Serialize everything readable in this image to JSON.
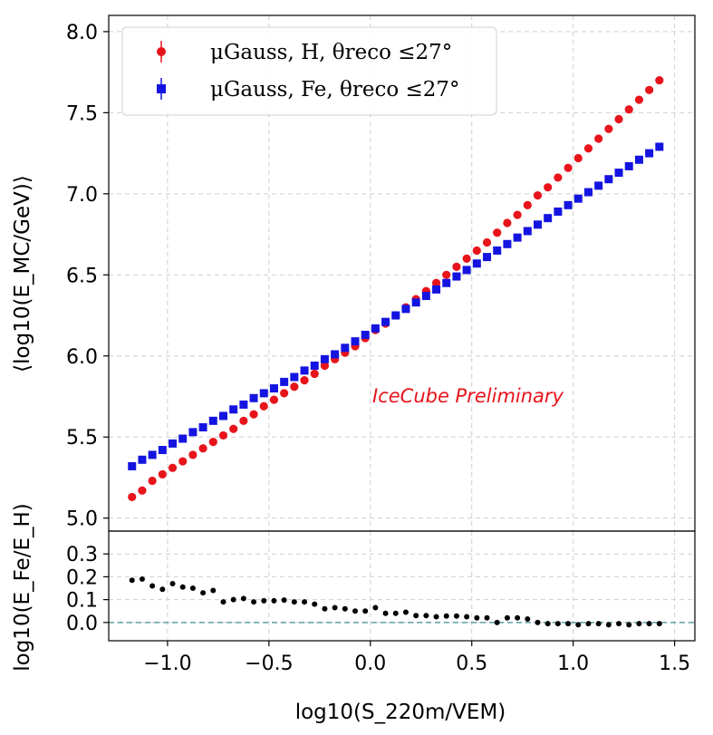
{
  "chart_data": [
    {
      "type": "scatter",
      "panel": "main",
      "ylabel": "⟨log10(E_MC/GeV)⟩",
      "ylim": [
        4.92,
        8.1
      ],
      "xlim": [
        -1.29,
        1.6
      ],
      "yticks": [
        "5.0",
        "5.5",
        "6.0",
        "6.5",
        "7.0",
        "7.5",
        "8.0"
      ],
      "legend": {
        "position": "top-left",
        "entries": [
          "μGauss, H, θreco ≤27°",
          "μGauss, Fe, θreco ≤27°"
        ]
      },
      "annotation": "IceCube Preliminary",
      "grid": true,
      "x": [
        -1.175,
        -1.125,
        -1.075,
        -1.025,
        -0.975,
        -0.925,
        -0.875,
        -0.825,
        -0.775,
        -0.725,
        -0.675,
        -0.625,
        -0.575,
        -0.525,
        -0.475,
        -0.425,
        -0.375,
        -0.325,
        -0.275,
        -0.225,
        -0.175,
        -0.125,
        -0.075,
        -0.025,
        0.025,
        0.075,
        0.125,
        0.175,
        0.225,
        0.275,
        0.325,
        0.375,
        0.425,
        0.475,
        0.525,
        0.575,
        0.625,
        0.675,
        0.725,
        0.775,
        0.825,
        0.875,
        0.925,
        0.975,
        1.025,
        1.075,
        1.125,
        1.175,
        1.225,
        1.275,
        1.325,
        1.375,
        1.425
      ],
      "series": [
        {
          "name": "H",
          "marker": "circle",
          "color": "#e8141b",
          "values": [
            5.13,
            5.17,
            5.23,
            5.27,
            5.31,
            5.35,
            5.39,
            5.43,
            5.47,
            5.51,
            5.55,
            5.6,
            5.64,
            5.69,
            5.73,
            5.77,
            5.81,
            5.85,
            5.89,
            5.94,
            5.98,
            6.02,
            6.06,
            6.11,
            6.16,
            6.2,
            6.25,
            6.3,
            6.35,
            6.4,
            6.45,
            6.5,
            6.55,
            6.6,
            6.65,
            6.7,
            6.76,
            6.82,
            6.87,
            6.93,
            6.99,
            7.04,
            7.1,
            7.16,
            7.22,
            7.28,
            7.34,
            7.4,
            7.46,
            7.52,
            7.58,
            7.64,
            7.7
          ]
        },
        {
          "name": "Fe",
          "marker": "square",
          "color": "#1414e0",
          "values": [
            5.32,
            5.36,
            5.39,
            5.42,
            5.46,
            5.49,
            5.53,
            5.56,
            5.6,
            5.63,
            5.67,
            5.7,
            5.74,
            5.77,
            5.8,
            5.84,
            5.87,
            5.91,
            5.94,
            5.98,
            6.01,
            6.05,
            6.09,
            6.13,
            6.17,
            6.21,
            6.25,
            6.29,
            6.33,
            6.37,
            6.41,
            6.45,
            6.49,
            6.53,
            6.57,
            6.61,
            6.65,
            6.69,
            6.73,
            6.77,
            6.81,
            6.85,
            6.89,
            6.93,
            6.97,
            7.01,
            7.05,
            7.09,
            7.13,
            7.17,
            7.21,
            7.25,
            7.29
          ]
        }
      ]
    },
    {
      "type": "scatter",
      "panel": "ratio",
      "xlabel": "log10(S_220m/VEM)",
      "ylabel": "log10(E_Fe/E_H)",
      "ylim": [
        -0.08,
        0.4
      ],
      "xlim": [
        -1.29,
        1.6
      ],
      "yticks": [
        "0.0",
        "0.1",
        "0.2",
        "0.3"
      ],
      "xticks": [
        "−1.0",
        "−0.5",
        "0.0",
        "0.5",
        "1.0",
        "1.5"
      ],
      "reference_line": 0.0,
      "grid": true,
      "series": [
        {
          "name": "ratio",
          "marker": "circle",
          "color": "#000000",
          "values": [
            0.185,
            0.19,
            0.16,
            0.145,
            0.17,
            0.155,
            0.15,
            0.13,
            0.14,
            0.09,
            0.1,
            0.105,
            0.09,
            0.095,
            0.095,
            0.098,
            0.09,
            0.09,
            0.08,
            0.06,
            0.065,
            0.06,
            0.05,
            0.05,
            0.065,
            0.04,
            0.04,
            0.045,
            0.03,
            0.03,
            0.025,
            0.028,
            0.028,
            0.025,
            0.02,
            0.02,
            0.0,
            0.02,
            0.02,
            0.015,
            0.0,
            -0.005,
            -0.005,
            -0.005,
            -0.01,
            -0.005,
            -0.005,
            -0.01,
            -0.005,
            -0.01,
            -0.005,
            -0.005,
            -0.005
          ]
        }
      ]
    }
  ]
}
